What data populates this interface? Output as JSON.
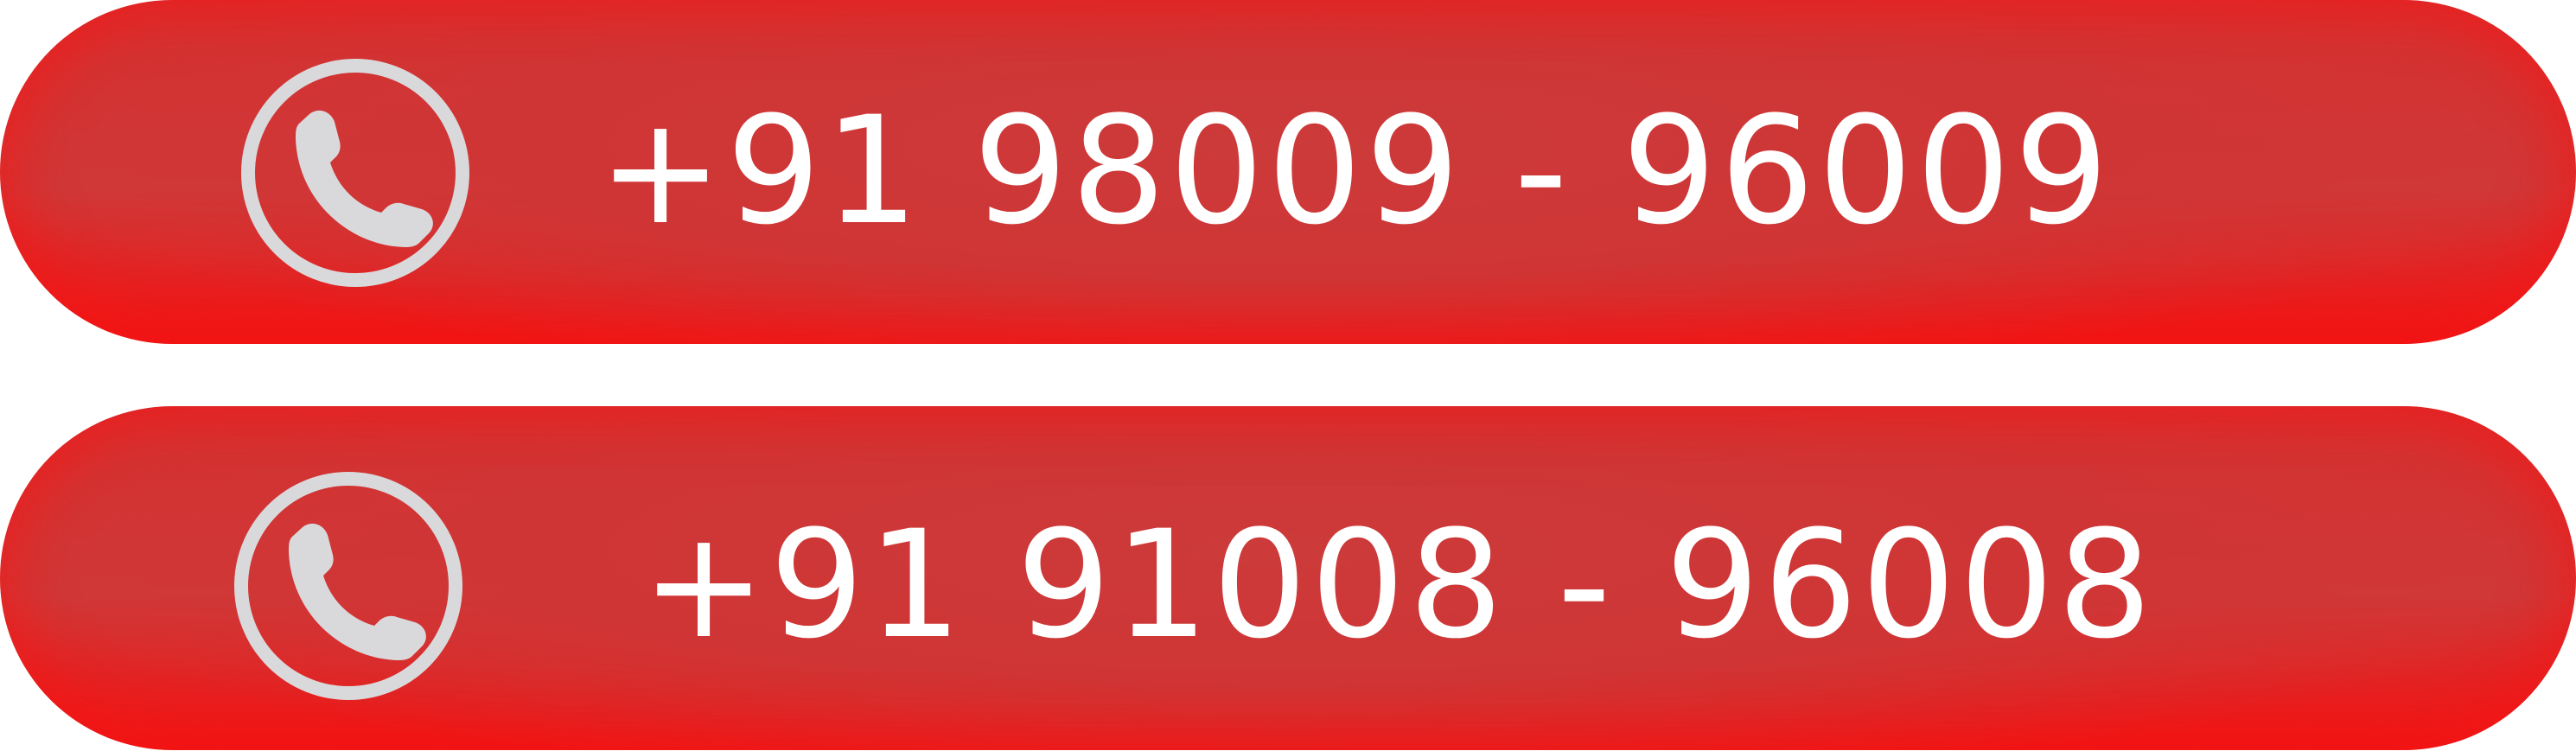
{
  "colors": {
    "pill_red": "#d63030",
    "pill_rim_red": "#f01414",
    "icon_gray": "#d9d9dc",
    "text_white": "#ffffff"
  },
  "buttons": [
    {
      "icon": "phone-icon",
      "number": "+91 98009 - 96009"
    },
    {
      "icon": "phone-icon",
      "number": "+91 91008 - 96008"
    }
  ]
}
